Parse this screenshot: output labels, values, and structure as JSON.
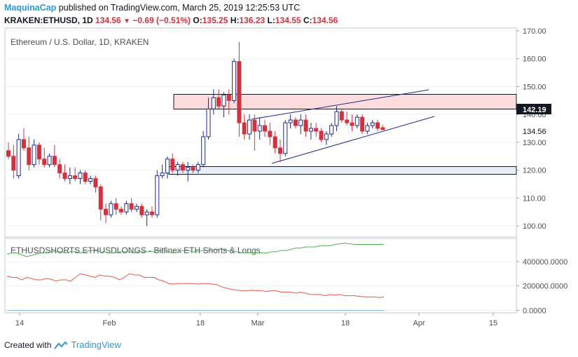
{
  "header": {
    "publisher": "MaquinaCap",
    "published_text": "published on TradingView.com, March 25, 2019 12:25:53 UTC",
    "symbol": "KRAKEN:ETHUSD, 1D",
    "last": "134.56",
    "change": "−0.69 (−0.51%)",
    "o_label": "O:",
    "o_value": "135.25",
    "h_label": "H:",
    "h_value": "136.23",
    "l_label": "L:",
    "l_value": "134.55",
    "c_label": "C:",
    "c_value": "134.56"
  },
  "footer": {
    "created_with": "Created with",
    "brand": "TradingView"
  },
  "colors": {
    "up": "#1e2a8a",
    "down": "#d0333f",
    "pink_zone": "#fcdcdc",
    "blue_zone": "#e6eef8",
    "shorts_line": "#e8554e",
    "longs_line": "#4caf50",
    "zero_line": "#7fb7e6",
    "label_badge": "#131722"
  },
  "chart_data": [
    {
      "type": "candlestick",
      "title": "Ethereum / U.S. Dollar, 1D, KRAKEN",
      "x_tick_labels": [
        "14",
        "Feb",
        "18",
        "Mar",
        "18",
        "Apr",
        "15"
      ],
      "y_ticks": [
        "170.00",
        "160.00",
        "150.00",
        "140.00",
        "130.00",
        "120.00",
        "110.00",
        "100.00"
      ],
      "ylim": [
        96,
        171
      ],
      "price_labels": {
        "current": "134.56",
        "highlighted": "142.19"
      },
      "candles": [
        {
          "o": 127,
          "h": 130,
          "l": 124,
          "c": 125
        },
        {
          "o": 125,
          "h": 129,
          "l": 117,
          "c": 120
        },
        {
          "o": 118,
          "h": 133,
          "l": 117,
          "c": 131
        },
        {
          "o": 131,
          "h": 135,
          "l": 127,
          "c": 128
        },
        {
          "o": 128,
          "h": 132,
          "l": 120,
          "c": 122
        },
        {
          "o": 122,
          "h": 131,
          "l": 121,
          "c": 129
        },
        {
          "o": 129,
          "h": 130,
          "l": 122,
          "c": 124
        },
        {
          "o": 124,
          "h": 128,
          "l": 121,
          "c": 122
        },
        {
          "o": 122,
          "h": 126,
          "l": 121,
          "c": 125
        },
        {
          "o": 125,
          "h": 129,
          "l": 121,
          "c": 122
        },
        {
          "o": 122,
          "h": 124,
          "l": 117,
          "c": 119
        },
        {
          "o": 119,
          "h": 122,
          "l": 116,
          "c": 117
        },
        {
          "o": 117,
          "h": 121,
          "l": 115,
          "c": 118
        },
        {
          "o": 118,
          "h": 121,
          "l": 116,
          "c": 117
        },
        {
          "o": 117,
          "h": 120,
          "l": 115,
          "c": 119
        },
        {
          "o": 119,
          "h": 120,
          "l": 115,
          "c": 116
        },
        {
          "o": 116,
          "h": 118,
          "l": 115,
          "c": 117
        },
        {
          "o": 117,
          "h": 118,
          "l": 112,
          "c": 114
        },
        {
          "o": 114,
          "h": 115,
          "l": 102,
          "c": 106
        },
        {
          "o": 106,
          "h": 108,
          "l": 101,
          "c": 104
        },
        {
          "o": 104,
          "h": 109,
          "l": 103,
          "c": 108
        },
        {
          "o": 108,
          "h": 110,
          "l": 104,
          "c": 106
        },
        {
          "o": 106,
          "h": 107,
          "l": 104,
          "c": 105
        },
        {
          "o": 105,
          "h": 109,
          "l": 104,
          "c": 108
        },
        {
          "o": 108,
          "h": 110,
          "l": 105,
          "c": 106
        },
        {
          "o": 106,
          "h": 108,
          "l": 105,
          "c": 107
        },
        {
          "o": 107,
          "h": 108,
          "l": 103,
          "c": 104
        },
        {
          "o": 104,
          "h": 106,
          "l": 100,
          "c": 105
        },
        {
          "o": 105,
          "h": 107,
          "l": 103,
          "c": 104
        },
        {
          "o": 104,
          "h": 120,
          "l": 103,
          "c": 118
        },
        {
          "o": 118,
          "h": 122,
          "l": 117,
          "c": 119
        },
        {
          "o": 119,
          "h": 125,
          "l": 117,
          "c": 124
        },
        {
          "o": 124,
          "h": 126,
          "l": 119,
          "c": 120
        },
        {
          "o": 120,
          "h": 123,
          "l": 118,
          "c": 122
        },
        {
          "o": 122,
          "h": 123,
          "l": 119,
          "c": 120
        },
        {
          "o": 120,
          "h": 123,
          "l": 116,
          "c": 121
        },
        {
          "o": 121,
          "h": 122,
          "l": 119,
          "c": 120
        },
        {
          "o": 120,
          "h": 123,
          "l": 119,
          "c": 122
        },
        {
          "o": 122,
          "h": 134,
          "l": 121,
          "c": 132
        },
        {
          "o": 132,
          "h": 146,
          "l": 131,
          "c": 142
        },
        {
          "o": 142,
          "h": 149,
          "l": 140,
          "c": 146
        },
        {
          "o": 146,
          "h": 149,
          "l": 142,
          "c": 143
        },
        {
          "o": 143,
          "h": 148,
          "l": 139,
          "c": 147
        },
        {
          "o": 147,
          "h": 149,
          "l": 140,
          "c": 145
        },
        {
          "o": 145,
          "h": 160,
          "l": 144,
          "c": 159
        },
        {
          "o": 159,
          "h": 166,
          "l": 132,
          "c": 137
        },
        {
          "o": 137,
          "h": 140,
          "l": 131,
          "c": 133
        },
        {
          "o": 133,
          "h": 140,
          "l": 131,
          "c": 138
        },
        {
          "o": 138,
          "h": 140,
          "l": 127,
          "c": 134
        },
        {
          "o": 134,
          "h": 139,
          "l": 131,
          "c": 136
        },
        {
          "o": 136,
          "h": 138,
          "l": 132,
          "c": 134
        },
        {
          "o": 134,
          "h": 137,
          "l": 129,
          "c": 132
        },
        {
          "o": 132,
          "h": 134,
          "l": 126,
          "c": 128
        },
        {
          "o": 128,
          "h": 131,
          "l": 123,
          "c": 126
        },
        {
          "o": 126,
          "h": 138,
          "l": 125,
          "c": 137
        },
        {
          "o": 137,
          "h": 140,
          "l": 135,
          "c": 138
        },
        {
          "o": 138,
          "h": 139,
          "l": 135,
          "c": 136
        },
        {
          "o": 136,
          "h": 140,
          "l": 133,
          "c": 138
        },
        {
          "o": 138,
          "h": 140,
          "l": 132,
          "c": 134
        },
        {
          "o": 134,
          "h": 137,
          "l": 131,
          "c": 135
        },
        {
          "o": 135,
          "h": 137,
          "l": 132,
          "c": 134
        },
        {
          "o": 134,
          "h": 135,
          "l": 130,
          "c": 131
        },
        {
          "o": 131,
          "h": 134,
          "l": 129,
          "c": 133
        },
        {
          "o": 133,
          "h": 137,
          "l": 132,
          "c": 136
        },
        {
          "o": 136,
          "h": 143,
          "l": 134,
          "c": 141
        },
        {
          "o": 141,
          "h": 142,
          "l": 137,
          "c": 138
        },
        {
          "o": 138,
          "h": 141,
          "l": 136,
          "c": 137
        },
        {
          "o": 137,
          "h": 140,
          "l": 134,
          "c": 136
        },
        {
          "o": 136,
          "h": 140,
          "l": 135,
          "c": 139
        },
        {
          "o": 139,
          "h": 140,
          "l": 133,
          "c": 134
        },
        {
          "o": 134,
          "h": 137,
          "l": 133,
          "c": 136
        },
        {
          "o": 136,
          "h": 138,
          "l": 135,
          "c": 137
        },
        {
          "o": 137,
          "h": 138,
          "l": 134,
          "c": 135
        },
        {
          "o": 135.25,
          "h": 136.23,
          "l": 134.55,
          "c": 134.56
        }
      ]
    },
    {
      "type": "line",
      "title": "ETHUSDSHORTS ETHUSDLONGS - Bitfinex ETH Shorts & Longs",
      "y_ticks": [
        "400000.0000",
        "200000.0000",
        "0.0000"
      ],
      "ylim": [
        -20000,
        560000
      ],
      "series": [
        {
          "values": [
            460000,
            470000,
            470000,
            455000,
            440000,
            450000,
            460000,
            470000,
            470000,
            480000,
            480000,
            480000,
            470000,
            480000,
            480000,
            470000,
            480000,
            490000,
            490000,
            480000,
            480000,
            470000,
            470000,
            480000,
            480000,
            480000,
            470000,
            480000,
            480000,
            480000,
            480000,
            490000,
            490000,
            480000,
            470000,
            480000,
            490000,
            490000,
            480000,
            480000,
            490000,
            490000,
            490000,
            500000,
            500000,
            490000,
            490000,
            480000,
            470000,
            470000,
            470000,
            470000,
            470000,
            470000,
            480000,
            480000,
            490000,
            490000,
            500000,
            510000,
            510000,
            520000,
            520000,
            520000,
            530000,
            530000,
            530000,
            540000,
            545000,
            550000,
            545000,
            540000,
            540000,
            540000,
            540000,
            540000,
            540000,
            540000
          ]
        },
        {
          "values": [
            280000,
            270000,
            270000,
            250000,
            270000,
            260000,
            250000,
            250000,
            260000,
            255000,
            240000,
            250000,
            250000,
            240000,
            270000,
            300000,
            290000,
            280000,
            270000,
            290000,
            280000,
            280000,
            270000,
            250000,
            270000,
            300000,
            290000,
            290000,
            270000,
            270000,
            270000,
            250000,
            240000,
            220000,
            215000,
            220000,
            220000,
            220000,
            220000,
            215000,
            220000,
            220000,
            215000,
            210000,
            190000,
            180000,
            170000,
            165000,
            160000,
            160000,
            165000,
            160000,
            160000,
            155000,
            160000,
            160000,
            150000,
            150000,
            150000,
            140000,
            150000,
            140000,
            130000,
            130000,
            130000,
            120000,
            130000,
            125000,
            130000,
            120000,
            120000,
            120000,
            115000,
            110000,
            110000,
            110000,
            105000,
            110000
          ]
        },
        {
          "values": [
            0,
            0
          ]
        }
      ]
    }
  ]
}
